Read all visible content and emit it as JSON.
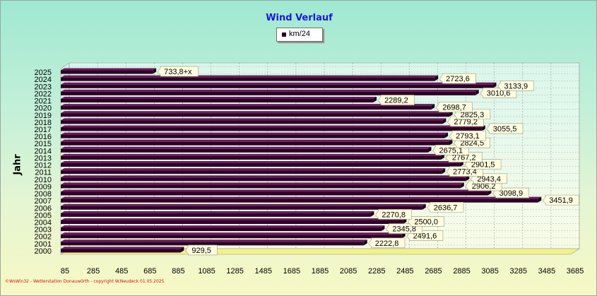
{
  "title": "Wind Verlauf",
  "legend": {
    "label": "km/24"
  },
  "ylabel": "Jahr",
  "footer": "©WsWin32 - Wetterstation Donauwörth - copyright W.Neudeck 01.05.2025",
  "colors": {
    "bar": "#2c0024",
    "bar_top": "#6a1a5e",
    "label_bg": "#fffde0",
    "title": "#1a18d8",
    "floor": "#f2f28a"
  },
  "chart_data": {
    "type": "bar",
    "orientation": "horizontal",
    "title": "Wind Verlauf",
    "ylabel": "Jahr",
    "xlabel": "",
    "xlim": [
      85,
      3685
    ],
    "xticks": [
      85,
      285,
      485,
      685,
      885,
      1085,
      1285,
      1485,
      1685,
      1885,
      2085,
      2285,
      2485,
      2685,
      2885,
      3085,
      3285,
      3485,
      3685
    ],
    "grid": true,
    "legend_position": "top-center",
    "series": [
      {
        "name": "km/24",
        "categories": [
          "2000",
          "2001",
          "2002",
          "2003",
          "2004",
          "2005",
          "2006",
          "2007",
          "2008",
          "2009",
          "2010",
          "2011",
          "2012",
          "2013",
          "2014",
          "2015",
          "2016",
          "2017",
          "2018",
          "2019",
          "2020",
          "2021",
          "2022",
          "2023",
          "2024",
          "2025"
        ],
        "values": [
          929.5,
          2222.8,
          2491.6,
          2345.8,
          2500.0,
          2270.8,
          2636.7,
          3451.9,
          3098.9,
          2906.2,
          2943.4,
          2773.4,
          2901.5,
          2767.2,
          2675.1,
          2824.5,
          2793.1,
          3055.5,
          2779.2,
          2825.3,
          2698.7,
          2289.2,
          3010.6,
          3133.9,
          2723.6,
          733.8
        ],
        "labels": [
          "929,5",
          "2222,8",
          "2491,6",
          "2345,8",
          "2500,0",
          "2270,8",
          "2636,7",
          "3451,9",
          "3098,9",
          "2906,2",
          "2943,4",
          "2773,4",
          "2901,5",
          "2767,2",
          "2675,1",
          "2824,5",
          "2793,1",
          "3055,5",
          "2779,2",
          "2825,3",
          "2698,7",
          "2289,2",
          "3010,6",
          "3133,9",
          "2723,6",
          "733,8+x"
        ]
      }
    ]
  }
}
